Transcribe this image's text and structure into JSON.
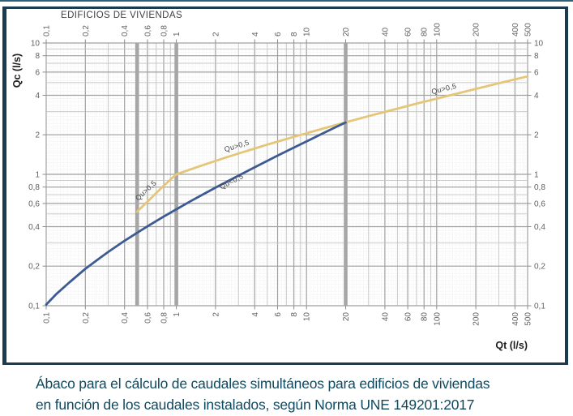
{
  "page": {
    "top_rule_color": "#2e6077",
    "box_border_color": "#1b3c50",
    "background": "#ffffff"
  },
  "caption": {
    "line1": "Ábaco para el cálculo de caudales simultáneos para edificios de viviendas",
    "line2": "en función de los caudales instalados, según Norma UNE 149201:2017",
    "color": "#10495f"
  },
  "chart_data": {
    "type": "line",
    "title": "EDIFICIOS DE VIVIENDAS",
    "xlabel": "Qt (l/s)",
    "ylabel": "Qc (l/s)",
    "x_scale": "log",
    "y_scale": "log",
    "xlim": [
      0.1,
      500
    ],
    "ylim": [
      0.1,
      10
    ],
    "grid": true,
    "x_ticks": [
      0.1,
      0.2,
      0.4,
      0.6,
      0.8,
      1,
      2,
      4,
      6,
      8,
      10,
      20,
      40,
      60,
      80,
      100,
      200,
      400,
      500
    ],
    "x_tick_labels": [
      "0,1",
      "0,2",
      "0,4",
      "0,6",
      "0,8",
      "1",
      "2",
      "4",
      "6",
      "8",
      "10",
      "20",
      "40",
      "60",
      "80",
      "100",
      "200",
      "400",
      "500"
    ],
    "y_ticks": [
      0.1,
      0.2,
      0.4,
      0.6,
      0.8,
      1,
      2,
      4,
      6,
      8,
      10
    ],
    "y_tick_labels": [
      "0,1",
      "0,2",
      "0,4",
      "0,6",
      "0,8",
      "1",
      "2",
      "4",
      "6",
      "8",
      "10"
    ],
    "highlight_x": [
      0.5,
      1,
      20
    ],
    "series": [
      {
        "name": "Qu>0,5",
        "color": "#e5c678",
        "x": [
          0.5,
          0.6,
          0.7,
          0.8,
          0.9,
          1,
          1.3,
          1.7,
          2,
          2.5,
          3,
          4,
          5,
          6,
          8,
          10,
          13,
          16,
          20,
          30,
          40,
          60,
          80,
          100,
          150,
          200,
          300,
          400,
          500
        ],
        "y": [
          0.52,
          0.62,
          0.72,
          0.82,
          0.91,
          1.0,
          1.096,
          1.2,
          1.266,
          1.361,
          1.441,
          1.574,
          1.684,
          1.777,
          1.931,
          2.057,
          2.213,
          2.343,
          2.489,
          2.773,
          2.989,
          3.317,
          3.567,
          3.772,
          4.169,
          4.472,
          4.933,
          5.282,
          5.569
        ]
      },
      {
        "name": "Qu<0,5",
        "color": "#3c5b92",
        "x": [
          0.1,
          0.12,
          0.15,
          0.2,
          0.25,
          0.3,
          0.4,
          0.5,
          0.6,
          0.8,
          1,
          1.3,
          1.7,
          2,
          2.5,
          3,
          4,
          5,
          6,
          8,
          10,
          13,
          16,
          20
        ],
        "y": [
          0.102,
          0.123,
          0.15,
          0.191,
          0.225,
          0.257,
          0.312,
          0.359,
          0.402,
          0.477,
          0.542,
          0.628,
          0.726,
          0.792,
          0.89,
          0.978,
          1.133,
          1.267,
          1.388,
          1.598,
          1.782,
          2.023,
          2.235,
          2.484
        ]
      }
    ],
    "curve_labels": [
      {
        "text": "Qu>0,5",
        "x": 0.6,
        "y": 0.73,
        "rot": -43
      },
      {
        "text": "Qu>0,5",
        "x": 2.95,
        "y": 1.58,
        "rot": -17
      },
      {
        "text": "Qu<0,5",
        "x": 2.7,
        "y": 0.85,
        "rot": -27
      },
      {
        "text": "Qu>0,5",
        "x": 115,
        "y": 4.3,
        "rot": -14
      }
    ],
    "colors": {
      "grid_major": "#a0a0a0",
      "grid_minor": "#c4c4c4",
      "mesh": "#e6e6e6",
      "highlight_bar": "#a6a6a6",
      "tick_mark": "#8c8c8c",
      "tick_text": "#5f5f5f",
      "curve_label_text": "#454545",
      "axis_label_text": "#1d1d1d"
    }
  }
}
